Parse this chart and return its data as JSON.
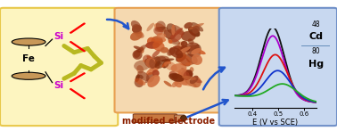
{
  "fig_width": 3.78,
  "fig_height": 1.47,
  "dpi": 100,
  "panel1_bg": "#fdf5c0",
  "panel1_border": "#e8c84a",
  "panel2_bg": "#f5d9b0",
  "panel2_border": "#e8a050",
  "panel3_bg": "#c8d8f0",
  "panel3_border": "#7090c8",
  "arrow_color": "#2255cc",
  "label_modified_electrode": "modified electrode",
  "label_me_color": "#8b2000",
  "label_me_fontsize": 7,
  "plot_xlabel": "E (V vs SCE)",
  "plot_xlabel_fontsize": 6,
  "x_ticks": [
    0.4,
    0.5,
    0.6
  ],
  "xlim": [
    0.33,
    0.65
  ],
  "ylim": [
    -0.05,
    1.05
  ],
  "curve_black_peak_x": 0.48,
  "curve_black_peak_y": 1.0,
  "curve_purple_peak_x": 0.48,
  "curve_purple_peak_y": 0.88,
  "curve_red_peak_x": 0.49,
  "curve_red_peak_y": 0.62,
  "curve_blue_peak_x": 0.5,
  "curve_blue_peak_y": 0.4,
  "curve_green_peak_x": 0.52,
  "curve_green_peak_y": 0.22,
  "curve_black_color": "#111111",
  "curve_purple_color": "#aa00cc",
  "curve_red_color": "#dd1111",
  "curve_blue_color": "#1133cc",
  "curve_green_color": "#22aa22",
  "legend_box_color": "#a8c0e8",
  "legend_box_border": "#5580b0",
  "fe_label": "Fe",
  "si_label1": "Si",
  "si_label2": "Si",
  "ferrocene_color": "#c89858",
  "sulfur_chain_color": "#b8b820"
}
